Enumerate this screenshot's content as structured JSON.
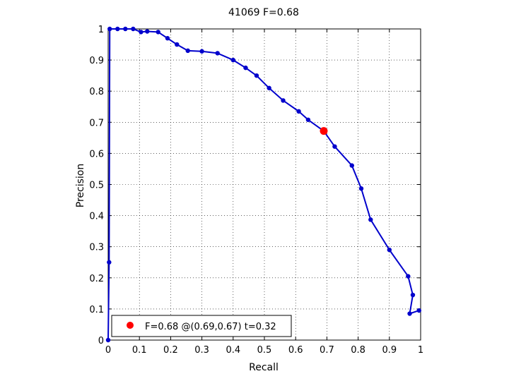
{
  "chart_data": {
    "type": "line",
    "title": "41069 F=0.68",
    "xlabel": "Recall",
    "ylabel": "Precision",
    "xlim": [
      0,
      1
    ],
    "ylim": [
      0,
      1
    ],
    "grid": true,
    "xticks": [
      0,
      0.1,
      0.2,
      0.3,
      0.4,
      0.5,
      0.6,
      0.7,
      0.8,
      0.9,
      1
    ],
    "yticks": [
      0,
      0.1,
      0.2,
      0.3,
      0.4,
      0.5,
      0.6,
      0.7,
      0.8,
      0.9,
      1
    ],
    "xtick_labels": [
      "0",
      "0.1",
      "0.2",
      "0.3",
      "0.4",
      "0.5",
      "0.6",
      "0.7",
      "0.8",
      "0.9",
      "1"
    ],
    "ytick_labels": [
      "0",
      "0.1",
      "0.2",
      "0.3",
      "0.4",
      "0.5",
      "0.6",
      "0.7",
      "0.8",
      "0.9",
      "1"
    ],
    "line_color": "#0000cc",
    "highlight_color": "#ff0000",
    "series": [
      {
        "color": "#0000cc",
        "points": [
          [
            0.0,
            0.0
          ],
          [
            0.003,
            0.25
          ],
          [
            0.005,
            1.0
          ],
          [
            0.03,
            1.0
          ],
          [
            0.055,
            1.0
          ],
          [
            0.08,
            1.0
          ],
          [
            0.105,
            0.99
          ],
          [
            0.125,
            0.992
          ],
          [
            0.16,
            0.99
          ],
          [
            0.19,
            0.97
          ],
          [
            0.22,
            0.95
          ],
          [
            0.255,
            0.93
          ],
          [
            0.3,
            0.928
          ],
          [
            0.35,
            0.922
          ],
          [
            0.4,
            0.9
          ],
          [
            0.44,
            0.875
          ],
          [
            0.475,
            0.85
          ],
          [
            0.515,
            0.81
          ],
          [
            0.56,
            0.77
          ],
          [
            0.61,
            0.735
          ],
          [
            0.64,
            0.708
          ],
          [
            0.69,
            0.672
          ],
          [
            0.725,
            0.622
          ],
          [
            0.78,
            0.561
          ],
          [
            0.81,
            0.487
          ],
          [
            0.84,
            0.387
          ],
          [
            0.9,
            0.29
          ],
          [
            0.96,
            0.205
          ],
          [
            0.975,
            0.145
          ],
          [
            0.965,
            0.085
          ],
          [
            0.995,
            0.095
          ]
        ]
      }
    ],
    "highlight": {
      "x": 0.69,
      "y": 0.672
    },
    "legend": {
      "position": "bottom-left",
      "entries": [
        "F=0.68 @(0.69,0.67) t=0.32"
      ]
    }
  }
}
